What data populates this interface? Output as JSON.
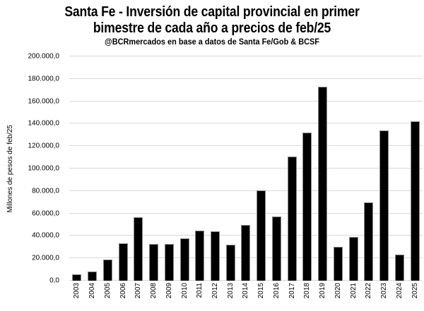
{
  "chart_data": {
    "type": "bar",
    "title": "Santa Fe - Inversión de capital provincial en primer bimestre de cada año a precios de feb/25",
    "title_lines": [
      "Santa Fe - Inversión de capital provincial en primer",
      "bimestre de cada año a precios de feb/25"
    ],
    "subtitle": "@BCRmercados en base a datos de Santa Fe/Gob & BCSF",
    "ylabel": "Millones de pesos de feb/25",
    "xlabel": "",
    "categories": [
      "2003",
      "2004",
      "2005",
      "2006",
      "2007",
      "2008",
      "2009",
      "2010",
      "2011",
      "2012",
      "2013",
      "2014",
      "2015",
      "2016",
      "2017",
      "2018",
      "2019",
      "2020",
      "2021",
      "2022",
      "2023",
      "2024",
      "2025"
    ],
    "values": [
      5500,
      8000,
      19000,
      33500,
      56500,
      33000,
      32500,
      38000,
      44500,
      44000,
      32000,
      50000,
      80500,
      57000,
      111000,
      132000,
      173000,
      30500,
      39000,
      70000,
      134000,
      23000,
      142000
    ],
    "ylim": [
      0,
      200000
    ],
    "ytick_values": [
      0,
      20000,
      40000,
      60000,
      80000,
      100000,
      120000,
      140000,
      160000,
      180000,
      200000
    ],
    "ytick_labels": [
      "0,0",
      "20.000,0",
      "40.000,0",
      "60.000,0",
      "80.000,0",
      "100.000,0",
      "120.000,0",
      "140.000,0",
      "160.000,0",
      "180.000,0",
      "200.000,0"
    ],
    "grid": true,
    "legend": false,
    "colors": {
      "bar_fill": "#000000",
      "bar_border": "#8a8a8a",
      "gridline": "#d9d9d9",
      "text": "#000000",
      "background": "#ffffff"
    }
  }
}
